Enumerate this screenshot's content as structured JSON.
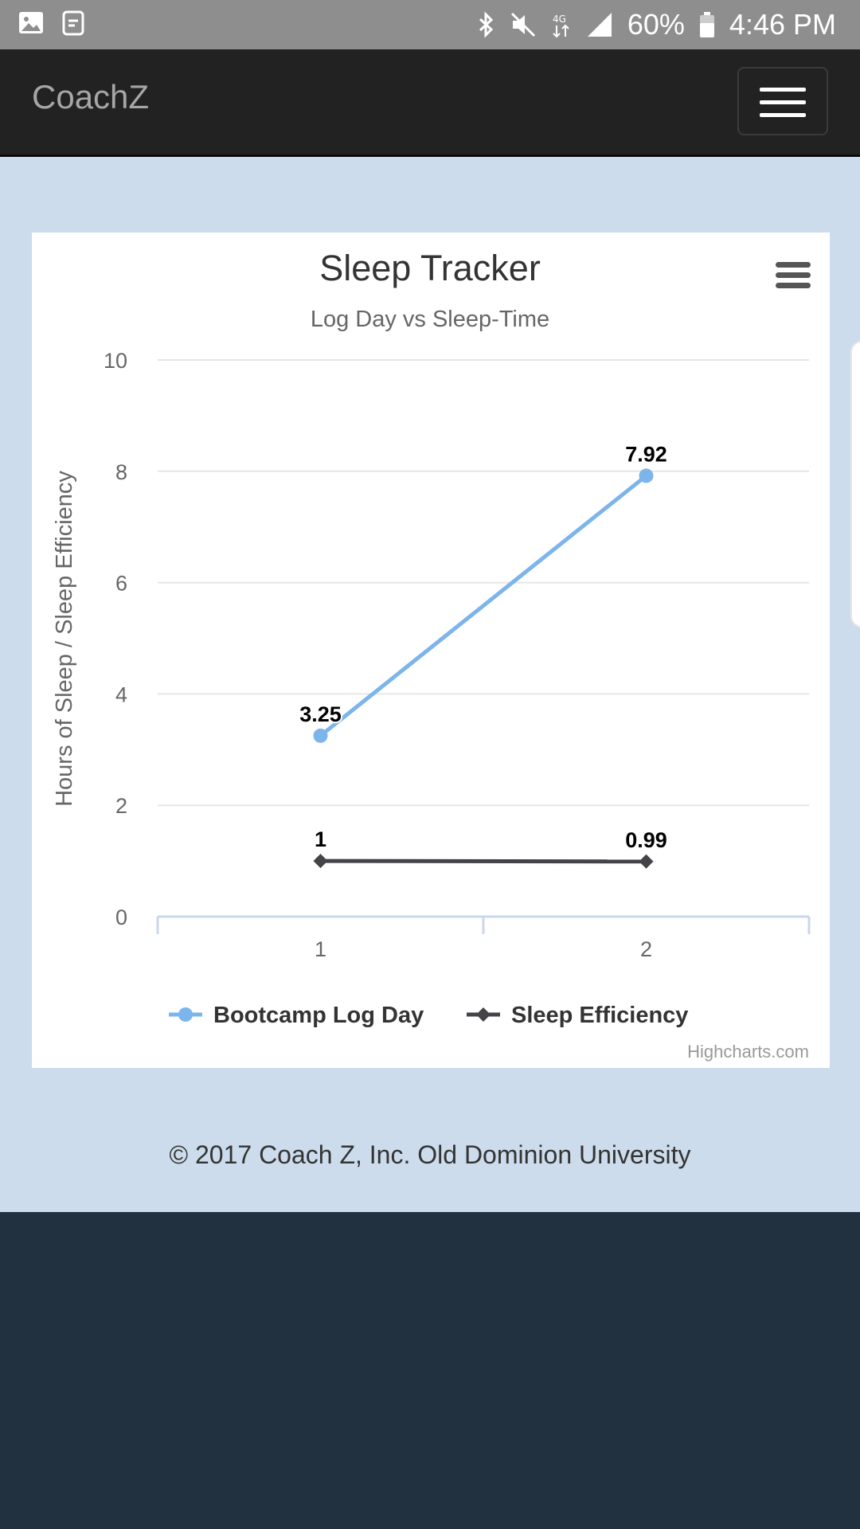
{
  "status_bar": {
    "left_icons": [
      "image-icon",
      "reminder-icon"
    ],
    "right_icons": [
      "bluetooth-icon",
      "mute-icon",
      "data-4g-icon",
      "signal-icon",
      "battery-icon"
    ],
    "battery": "60%",
    "time": "4:46 PM"
  },
  "navbar": {
    "brand": "CoachZ",
    "menu_icon": "hamburger-icon"
  },
  "chart_menu_icon": "hamburger-icon",
  "chart_data": {
    "type": "line",
    "title": "Sleep Tracker",
    "subtitle": "Log Day vs Sleep-Time",
    "xlabel": "",
    "ylabel": "Hours of Sleep / Sleep Efficiency",
    "categories": [
      "1",
      "2"
    ],
    "ylim": [
      0,
      10
    ],
    "yticks": [
      0,
      2,
      4,
      6,
      8,
      10
    ],
    "grid": true,
    "legend_position": "bottom",
    "credits": "Highcharts.com",
    "series": [
      {
        "name": "Bootcamp Log Day",
        "values": [
          3.25,
          7.92
        ],
        "labels": [
          "3.25",
          "7.92"
        ],
        "color": "#7cb5ec",
        "marker": "circle"
      },
      {
        "name": "Sleep Efficiency",
        "values": [
          1,
          0.99
        ],
        "labels": [
          "1",
          "0.99"
        ],
        "color": "#434348",
        "marker": "diamond"
      }
    ]
  },
  "footer": {
    "copyright": "© 2017 Coach Z, Inc. Old Dominion University"
  }
}
